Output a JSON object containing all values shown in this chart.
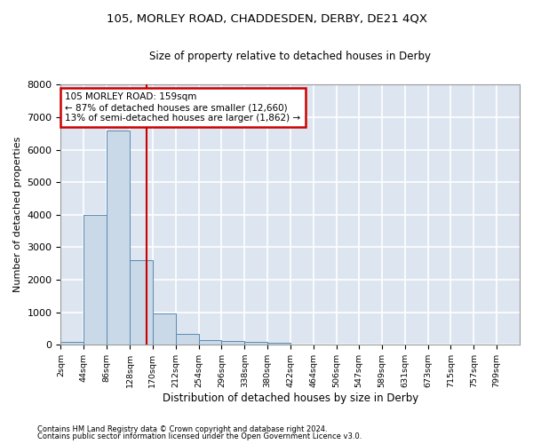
{
  "title": "105, MORLEY ROAD, CHADDESDEN, DERBY, DE21 4QX",
  "subtitle": "Size of property relative to detached houses in Derby",
  "xlabel": "Distribution of detached houses by size in Derby",
  "ylabel": "Number of detached properties",
  "bin_edges": [
    2,
    44,
    86,
    128,
    170,
    212,
    254,
    296,
    338,
    380,
    422,
    464,
    506,
    547,
    589,
    631,
    673,
    715,
    757,
    799,
    841
  ],
  "bar_heights": [
    80,
    4000,
    6580,
    2600,
    950,
    330,
    150,
    120,
    75,
    55,
    0,
    0,
    0,
    0,
    0,
    0,
    0,
    0,
    0,
    0
  ],
  "bar_color": "#c9d9e8",
  "bar_edge_color": "#5a8ab0",
  "property_size": 159,
  "vline_color": "#cc0000",
  "annotation_line1": "105 MORLEY ROAD: 159sqm",
  "annotation_line2": "← 87% of detached houses are smaller (12,660)",
  "annotation_line3": "13% of semi-detached houses are larger (1,862) →",
  "annotation_box_color": "#cc0000",
  "ylim": [
    0,
    8000
  ],
  "yticks": [
    0,
    1000,
    2000,
    3000,
    4000,
    5000,
    6000,
    7000,
    8000
  ],
  "footer1": "Contains HM Land Registry data © Crown copyright and database right 2024.",
  "footer2": "Contains public sector information licensed under the Open Government Licence v3.0.",
  "bg_color": "#dde6f0",
  "grid_color": "#ffffff",
  "title_fontsize": 9.5,
  "subtitle_fontsize": 8.5
}
